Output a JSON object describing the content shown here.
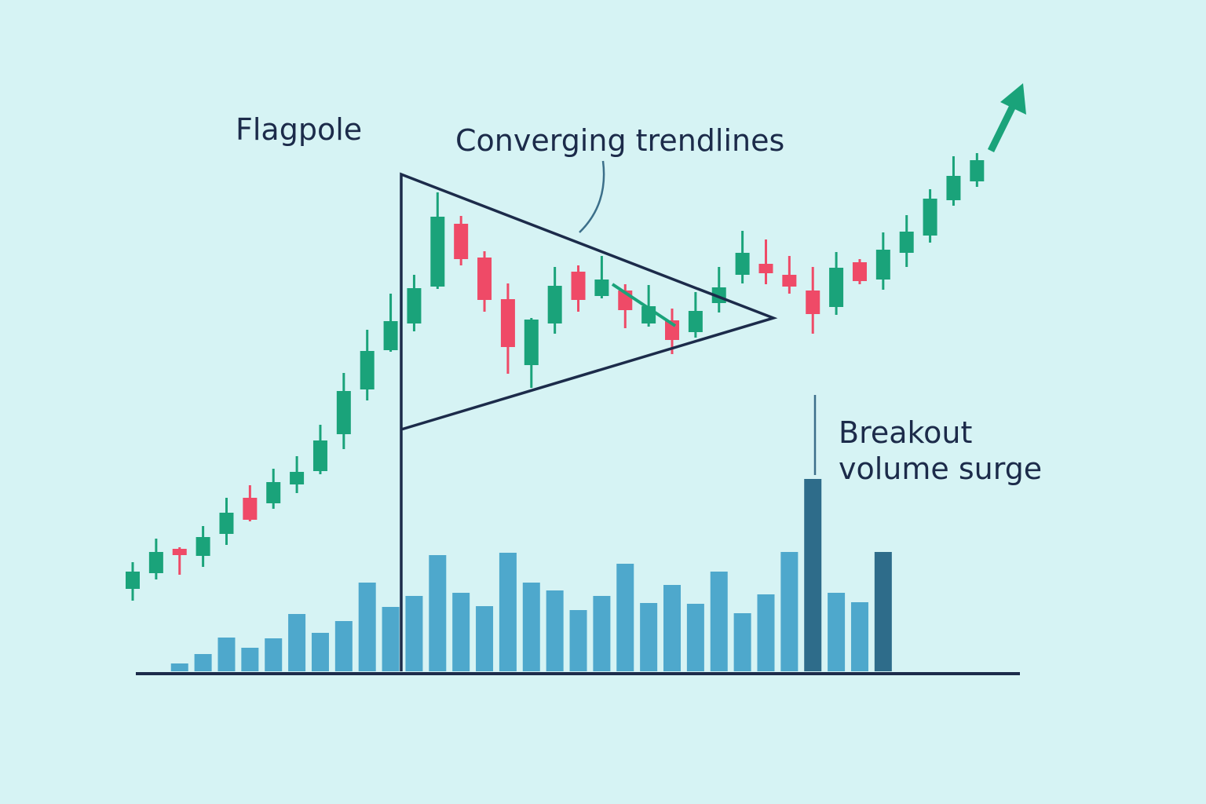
{
  "chart_data": {
    "type": "candlestick",
    "annotations": [
      "Flagpole",
      "Converging trendlines",
      "Breakout",
      "volume surge"
    ],
    "up_color": "#1aa37a",
    "down_color": "#ef4a67",
    "ylim": [
      0,
      76
    ],
    "open": [
      11.0,
      13.0,
      16.1,
      15.2,
      18.0,
      22.6,
      21.9,
      24.3,
      26.0,
      30.7,
      36.4,
      41.4,
      44.8,
      49.5,
      57.5,
      53.2,
      47.9,
      39.5,
      44.8,
      51.4,
      48.3,
      49.0,
      44.8,
      45.2,
      43.7,
      47.4,
      51.0,
      52.4,
      51.0,
      49.0,
      46.9,
      52.6,
      50.4,
      53.8,
      56.0,
      60.5,
      62.9
    ],
    "high": [
      14.4,
      17.4,
      16.3,
      19.0,
      22.6,
      24.2,
      26.3,
      27.9,
      31.9,
      38.5,
      44.0,
      48.6,
      51.0,
      61.5,
      58.5,
      54.0,
      49.9,
      45.5,
      52.0,
      52.2,
      53.4,
      49.8,
      49.7,
      46.7,
      48.8,
      52.0,
      56.6,
      55.5,
      53.4,
      52.0,
      53.9,
      53.0,
      56.4,
      58.6,
      61.9,
      66.1,
      66.5
    ],
    "low": [
      9.5,
      12.2,
      12.8,
      13.8,
      16.6,
      19.6,
      21.2,
      23.2,
      25.6,
      28.8,
      35.0,
      41.2,
      43.8,
      49.2,
      52.2,
      46.3,
      38.4,
      36.6,
      43.5,
      46.3,
      48.0,
      44.2,
      44.4,
      40.9,
      43.0,
      46.2,
      49.9,
      49.8,
      48.6,
      43.5,
      45.9,
      49.8,
      49.1,
      52.0,
      55.1,
      59.8,
      62.2
    ],
    "close": [
      13.2,
      15.7,
      15.3,
      17.6,
      20.7,
      19.8,
      24.6,
      25.9,
      29.9,
      36.2,
      41.3,
      45.1,
      49.3,
      58.4,
      53.0,
      47.8,
      41.8,
      45.3,
      49.6,
      47.8,
      50.4,
      46.5,
      47.0,
      42.7,
      46.4,
      49.4,
      53.8,
      51.2,
      49.5,
      46.0,
      51.9,
      50.2,
      54.2,
      56.5,
      60.7,
      63.6,
      65.6
    ],
    "volume": [
      null,
      null,
      4,
      8.8,
      17.2,
      12,
      16.8,
      29.2,
      19.6,
      25.6,
      45.2,
      32.8,
      38.4,
      59.2,
      40,
      33.2,
      60.4,
      45.2,
      41.2,
      31.2,
      38.4,
      54.8,
      34.8,
      44,
      34.4,
      50.8,
      29.6,
      39.2,
      60.8,
      98,
      40,
      35.2,
      60.8,
      null,
      null,
      null,
      null
    ],
    "volume_colors": [
      null,
      null,
      "#4ea8cc",
      "#4ea8cc",
      "#4ea8cc",
      "#4ea8cc",
      "#4ea8cc",
      "#4ea8cc",
      "#4ea8cc",
      "#4ea8cc",
      "#4ea8cc",
      "#4ea8cc",
      "#4ea8cc",
      "#4ea8cc",
      "#4ea8cc",
      "#4ea8cc",
      "#4ea8cc",
      "#4ea8cc",
      "#4ea8cc",
      "#4ea8cc",
      "#4ea8cc",
      "#4ea8cc",
      "#4ea8cc",
      "#4ea8cc",
      "#4ea8cc",
      "#4ea8cc",
      "#4ea8cc",
      "#4ea8cc",
      "#4ea8cc",
      "#2e6c8a",
      "#4ea8cc",
      "#4ea8cc",
      "#2e6c8a",
      null,
      null,
      null,
      null
    ],
    "y2lim": [
      0,
      100
    ]
  }
}
